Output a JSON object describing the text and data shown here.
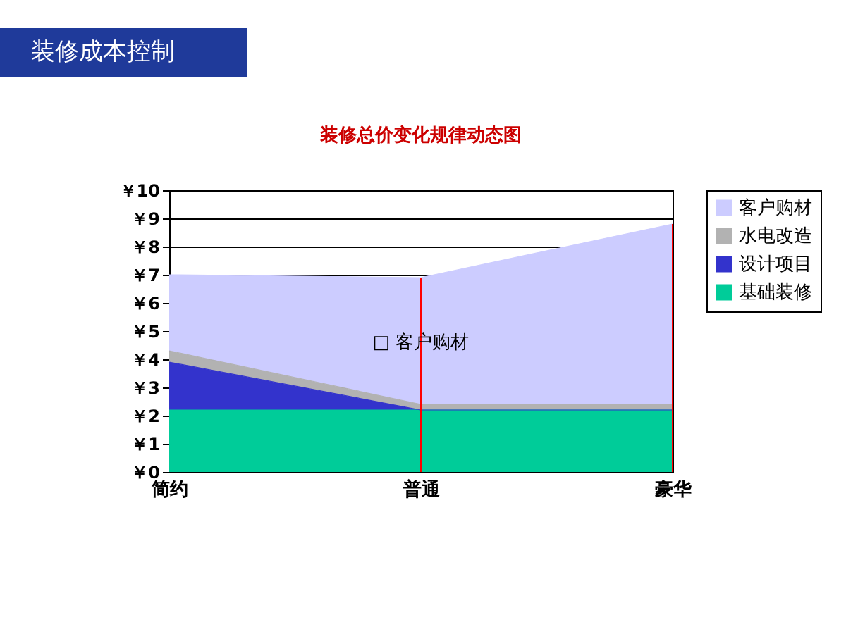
{
  "chart_data": {
    "type": "area",
    "stacked": true,
    "title": "装修总价变化规律动态图",
    "annotations": [
      "装修成本控制",
      {
        "text": "□ 客户购材",
        "x": "普通",
        "y": 4.6
      }
    ],
    "categories": [
      "简约",
      "普通",
      "豪华"
    ],
    "series": [
      {
        "name": "基础装修",
        "color": "#00cc99",
        "values": [
          2.2,
          2.2,
          2.2
        ]
      },
      {
        "name": "设计项目",
        "color": "#3333cc",
        "values": [
          1.7,
          0,
          0
        ]
      },
      {
        "name": "水电改造",
        "color": "#b2b2b2",
        "values": [
          0.4,
          0.2,
          0.2
        ]
      },
      {
        "name": "客户购材",
        "color": "#ccccff",
        "values": [
          2.7,
          4.5,
          6.4
        ]
      }
    ],
    "ylim": [
      0,
      10
    ],
    "yticks": [
      {
        "value": 0,
        "label": "￥0"
      },
      {
        "value": 1,
        "label": "￥1"
      },
      {
        "value": 2,
        "label": "￥2"
      },
      {
        "value": 3,
        "label": "￥3"
      },
      {
        "value": 4,
        "label": "￥4"
      },
      {
        "value": 5,
        "label": "￥5"
      },
      {
        "value": 6,
        "label": "￥6"
      },
      {
        "value": 7,
        "label": "￥7"
      },
      {
        "value": 8,
        "label": "￥8"
      },
      {
        "value": 9,
        "label": "￥9"
      },
      {
        "value": 10,
        "label": "￥10"
      }
    ],
    "grid": "y",
    "legend": "right",
    "ref_lines": [
      {
        "axis": "x",
        "value": "普通",
        "color": "#ff0000"
      },
      {
        "axis": "x",
        "value": "豪华",
        "color": "#ff0000"
      }
    ]
  }
}
